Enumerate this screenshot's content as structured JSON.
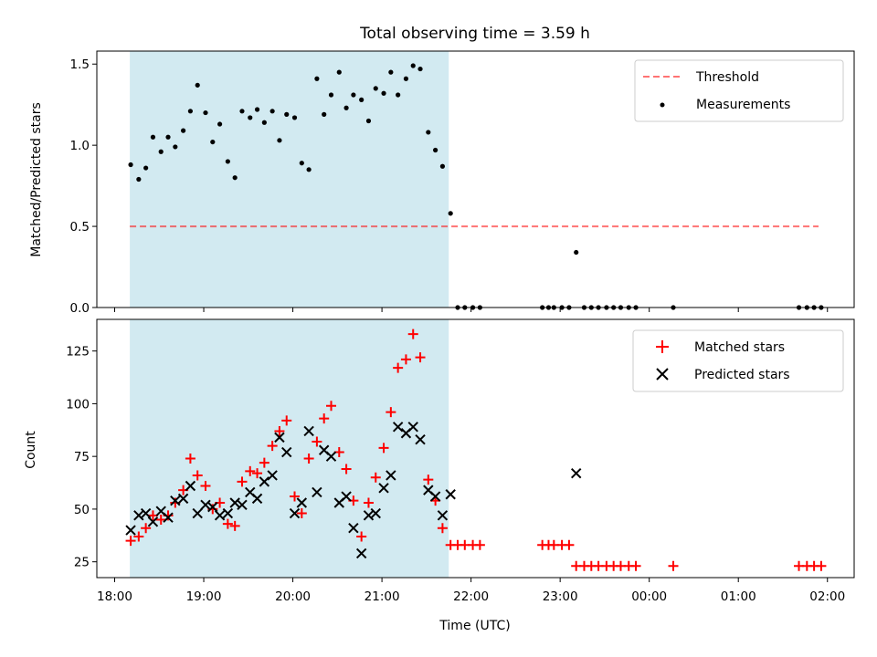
{
  "figure": {
    "title": "Total observing time = 3.59 h",
    "background": "#ffffff"
  },
  "colors": {
    "shade": "#add8e6",
    "threshold": "#ff0000",
    "measurement": "#000000",
    "matched": "#ff0000",
    "predicted": "#000000"
  },
  "chart_data": [
    {
      "type": "scatter",
      "title": "Total observing time = 3.59 h",
      "xlabel": "",
      "ylabel": "Matched/Predicted stars",
      "x_unit": "hours since 00:00 UTC (values above 24 are past midnight)",
      "xlim": [
        17.8,
        26.3
      ],
      "ylim": [
        0,
        1.58
      ],
      "yticks": [
        0.0,
        0.5,
        1.0,
        1.5
      ],
      "ytick_labels": [
        "0.0",
        "0.5",
        "1.0",
        "1.5"
      ],
      "shaded_interval": [
        18.17,
        21.75
      ],
      "grid": false,
      "legend_position": "upper right",
      "threshold": {
        "name": "Threshold",
        "y": 0.5,
        "x_range": [
          18.17,
          25.9
        ]
      },
      "series": [
        {
          "name": "Measurements",
          "x": [
            18.18,
            18.27,
            18.35,
            18.43,
            18.52,
            18.6,
            18.68,
            18.77,
            18.85,
            18.93,
            19.02,
            19.1,
            19.18,
            19.27,
            19.35,
            19.43,
            19.52,
            19.6,
            19.68,
            19.77,
            19.85,
            19.93,
            20.02,
            20.1,
            20.18,
            20.27,
            20.35,
            20.43,
            20.52,
            20.6,
            20.68,
            20.77,
            20.85,
            20.93,
            21.02,
            21.1,
            21.18,
            21.27,
            21.35,
            21.43,
            21.52,
            21.6,
            21.68,
            21.77,
            21.85,
            21.93,
            22.02,
            22.1,
            22.8,
            22.87,
            22.93,
            23.02,
            23.1,
            23.18,
            23.27,
            23.35,
            23.43,
            23.52,
            23.6,
            23.68,
            23.77,
            23.85,
            24.27,
            25.68,
            25.77,
            25.85,
            25.93
          ],
          "y": [
            0.88,
            0.79,
            0.86,
            1.05,
            0.96,
            1.05,
            0.99,
            1.09,
            1.21,
            1.37,
            1.2,
            1.02,
            1.13,
            0.9,
            0.8,
            1.21,
            1.17,
            1.22,
            1.14,
            1.21,
            1.03,
            1.19,
            1.17,
            0.89,
            0.85,
            1.41,
            1.19,
            1.31,
            1.45,
            1.23,
            1.31,
            1.28,
            1.15,
            1.35,
            1.32,
            1.45,
            1.31,
            1.41,
            1.49,
            1.47,
            1.08,
            0.97,
            0.87,
            0.58,
            0.0,
            0.0,
            0.0,
            0.0,
            0.0,
            0.0,
            0.0,
            0.0,
            0.0,
            0.34,
            0.0,
            0.0,
            0.0,
            0.0,
            0.0,
            0.0,
            0.0,
            0.0,
            0.0,
            0.0,
            0.0,
            0.0,
            0.0
          ]
        }
      ]
    },
    {
      "type": "scatter",
      "title": "",
      "xlabel": "Time (UTC)",
      "ylabel": "Count",
      "x_unit": "hours since 00:00 UTC (values above 24 are past midnight)",
      "xlim": [
        17.8,
        26.3
      ],
      "ylim": [
        17.5,
        140
      ],
      "yticks": [
        25,
        50,
        75,
        100,
        125
      ],
      "ytick_labels": [
        "25",
        "50",
        "75",
        "100",
        "125"
      ],
      "xticks": [
        18,
        19,
        20,
        21,
        22,
        23,
        24,
        25,
        26
      ],
      "xtick_labels": [
        "18:00",
        "19:00",
        "20:00",
        "21:00",
        "22:00",
        "23:00",
        "00:00",
        "01:00",
        "02:00"
      ],
      "shaded_interval": [
        18.17,
        21.75
      ],
      "grid": false,
      "legend_position": "upper right",
      "series": [
        {
          "name": "Matched stars",
          "marker": "plus",
          "x": [
            18.18,
            18.27,
            18.35,
            18.43,
            18.52,
            18.6,
            18.68,
            18.77,
            18.85,
            18.93,
            19.02,
            19.1,
            19.18,
            19.27,
            19.35,
            19.43,
            19.52,
            19.6,
            19.68,
            19.77,
            19.85,
            19.93,
            20.02,
            20.1,
            20.18,
            20.27,
            20.35,
            20.43,
            20.52,
            20.6,
            20.68,
            20.77,
            20.85,
            20.93,
            21.02,
            21.1,
            21.18,
            21.27,
            21.35,
            21.43,
            21.52,
            21.6,
            21.68,
            21.77,
            21.85,
            21.93,
            22.02,
            22.1,
            22.8,
            22.87,
            22.93,
            23.02,
            23.1,
            23.18,
            23.27,
            23.35,
            23.43,
            23.52,
            23.6,
            23.68,
            23.77,
            23.85,
            24.27,
            25.68,
            25.77,
            25.85,
            25.93
          ],
          "y": [
            35,
            37,
            41,
            47,
            45,
            47,
            53,
            59,
            74,
            66,
            61,
            50,
            53,
            43,
            42,
            63,
            68,
            67,
            72,
            80,
            87,
            92,
            56,
            48,
            74,
            82,
            93,
            99,
            77,
            69,
            54,
            37,
            53,
            65,
            79,
            96,
            117,
            121,
            133,
            122,
            64,
            54,
            41,
            33,
            33,
            33,
            33,
            33,
            33,
            33,
            33,
            33,
            33,
            23,
            23,
            23,
            23,
            23,
            23,
            23,
            23,
            23,
            23,
            23,
            23,
            23,
            23
          ]
        },
        {
          "name": "Predicted stars",
          "marker": "x",
          "x": [
            18.18,
            18.27,
            18.35,
            18.43,
            18.52,
            18.6,
            18.68,
            18.77,
            18.85,
            18.93,
            19.02,
            19.1,
            19.18,
            19.27,
            19.35,
            19.43,
            19.52,
            19.6,
            19.68,
            19.77,
            19.85,
            19.93,
            20.02,
            20.1,
            20.18,
            20.27,
            20.35,
            20.43,
            20.52,
            20.6,
            20.68,
            20.77,
            20.85,
            20.93,
            21.02,
            21.1,
            21.18,
            21.27,
            21.35,
            21.43,
            21.52,
            21.6,
            21.68,
            21.77,
            23.18
          ],
          "y": [
            40,
            47,
            48,
            44,
            49,
            46,
            54,
            55,
            61,
            48,
            52,
            51,
            47,
            48,
            53,
            52,
            58,
            55,
            63,
            66,
            84,
            77,
            48,
            53,
            87,
            58,
            78,
            75,
            53,
            56,
            41,
            29,
            47,
            48,
            60,
            66,
            89,
            86,
            89,
            83,
            59,
            56,
            47,
            57,
            67
          ]
        }
      ]
    }
  ]
}
